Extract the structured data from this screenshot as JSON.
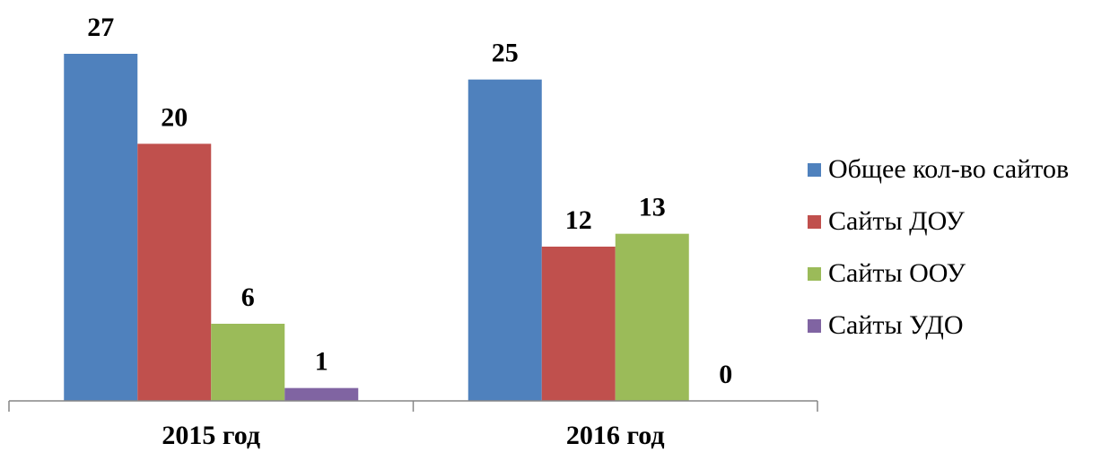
{
  "chart_data": {
    "type": "bar",
    "categories": [
      "2015 год",
      "2016 год"
    ],
    "series": [
      {
        "name": "Общее кол-во сайтов",
        "color": "#4F81BD",
        "values": [
          27,
          25
        ]
      },
      {
        "name": "Сайты ДОУ",
        "color": "#C0504D",
        "values": [
          20,
          12
        ]
      },
      {
        "name": "Сайты ООУ",
        "color": "#9BBB59",
        "values": [
          6,
          13
        ]
      },
      {
        "name": "Сайты УДО",
        "color": "#8064A2",
        "values": [
          1,
          0
        ]
      }
    ],
    "title": "",
    "xlabel": "",
    "ylabel": "",
    "ylim": [
      0,
      27
    ],
    "grid": false,
    "legend": "right",
    "data_labels": true
  }
}
